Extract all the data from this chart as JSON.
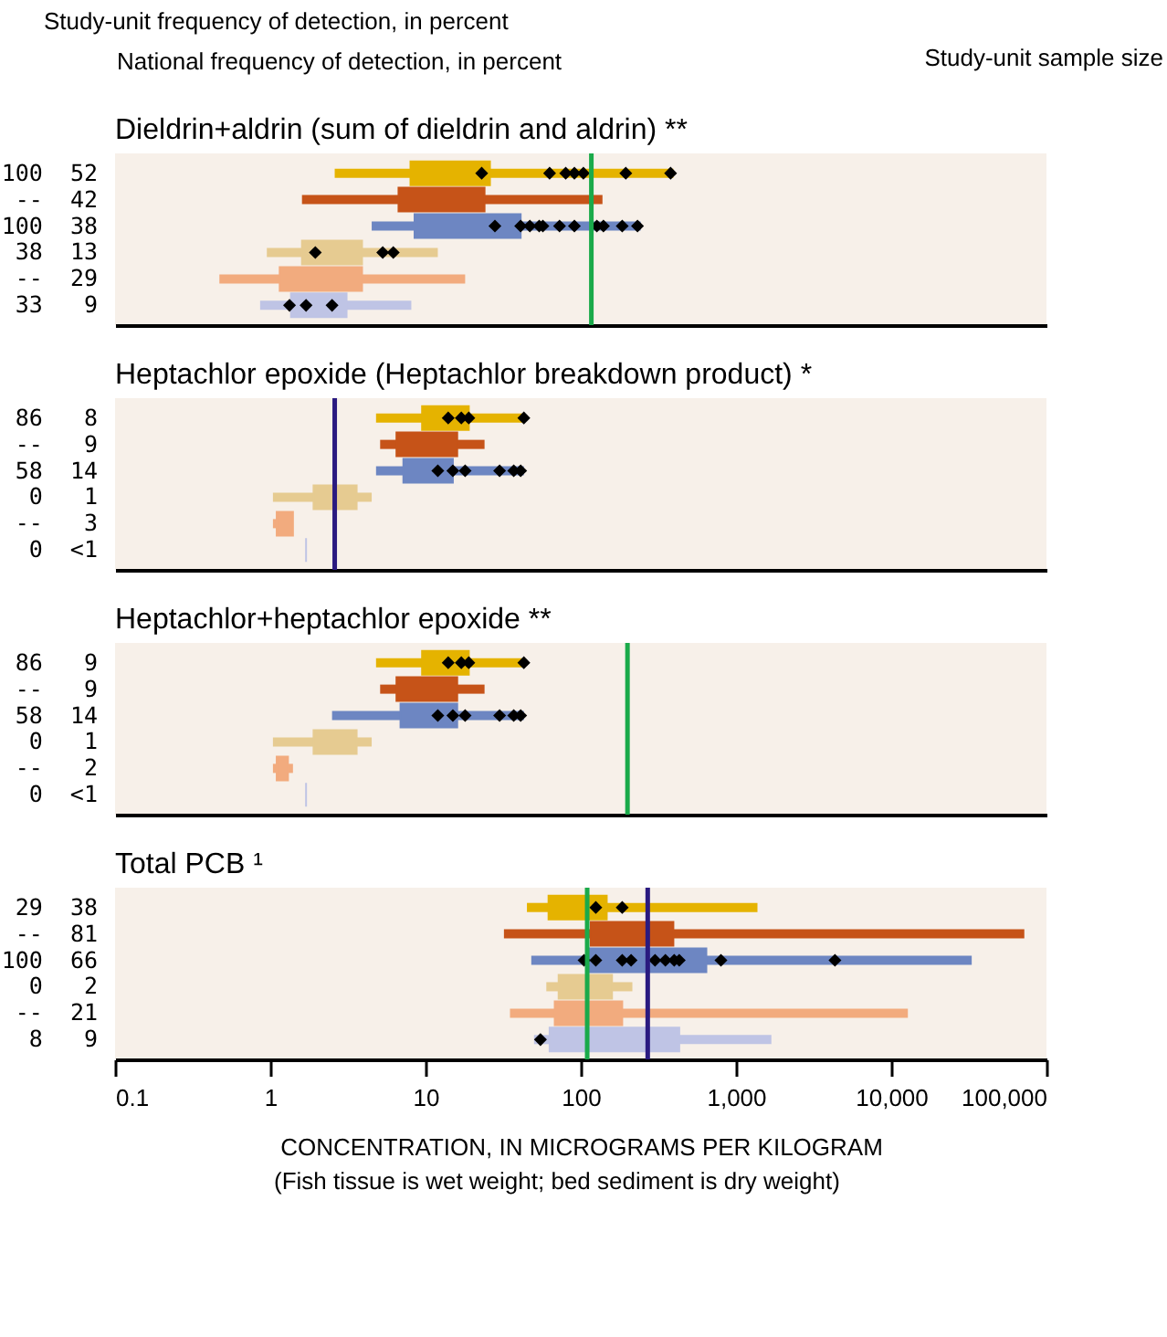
{
  "chart_data": [
    {
      "type": "box",
      "orientation": "horizontal",
      "title": "Dieldrin+aldrin (sum of dieldrin and aldrin)  **",
      "annotations": [
        "Study-unit frequency of detection, in percent",
        "National frequency of detection, in percent",
        "Study-unit sample size"
      ],
      "categories": [
        "100 52",
        "-- 42",
        "100 38",
        "38 13",
        "-- 29",
        "33 9"
      ],
      "colors": [
        "#e5b300",
        "#c65318",
        "#6d86c2",
        "#e6cb91",
        "#f2ab7e",
        "#bfc4e5"
      ],
      "boxes": [
        {
          "low": 2.6,
          "q1": 8,
          "q3": 26,
          "high": 395,
          "outliers": [
            23,
            63,
            80,
            91,
            104,
            195,
            379
          ]
        },
        {
          "low": 1.6,
          "q1": 6.7,
          "q3": 24,
          "high": 138
        },
        {
          "low": 4.5,
          "q1": 8.5,
          "q3": 41,
          "high": 243,
          "outliers": [
            28,
            41,
            47,
            54,
            57,
            73,
            91,
            127,
            140,
            185,
            232
          ]
        },
        {
          "low": 0.95,
          "q1": 1.6,
          "q3": 3.9,
          "high": 12,
          "outliers": [
            1.95,
            5.3,
            6.2
          ]
        },
        {
          "low": 0.47,
          "q1": 1.15,
          "q3": 3.9,
          "high": 18
        },
        {
          "low": 0.86,
          "q1": 1.36,
          "q3": 3.1,
          "high": 8.1,
          "outliers": [
            1.33,
            1.7,
            2.5
          ]
        }
      ],
      "marker": "diamond",
      "log": "x",
      "xlim": [
        0.1,
        100000
      ],
      "tick_labels": "y",
      "ref_lines": [
        {
          "axis": "x",
          "value": 117,
          "color": "#1aaa4a"
        }
      ]
    },
    {
      "type": "box",
      "orientation": "horizontal",
      "title": "Heptachlor epoxide (Heptachlor breakdown product) *",
      "categories": [
        "86 8",
        "-- 9",
        "58 14",
        "0 1",
        "-- 3",
        "0 <1"
      ],
      "colors": [
        "#e5b300",
        "#c65318",
        "#6d86c2",
        "#e6cb91",
        "#f2ab7e",
        "#bfc4e5"
      ],
      "boxes": [
        {
          "low": 4.8,
          "q1": 9.5,
          "q3": 19,
          "high": 43,
          "outliers": [
            14,
            17,
            19,
            43
          ]
        },
        {
          "low": 5.1,
          "q1": 6.5,
          "q3": 16,
          "high": 24
        },
        {
          "low": 4.8,
          "q1": 7.2,
          "q3": 15,
          "high": 43,
          "outliers": [
            12,
            15,
            18,
            30,
            37,
            41
          ]
        },
        {
          "low": 1.04,
          "q1": 1.9,
          "q3": 3.6,
          "high": 4.5
        },
        {
          "low": 1.04,
          "q1": 1.1,
          "q3": 1.4,
          "high": 1.4
        },
        {
          "low": 1.7,
          "q1": 1.7,
          "q3": 1.7,
          "high": 1.7
        }
      ],
      "marker": "diamond",
      "log": "x",
      "xlim": [
        0.1,
        100000
      ],
      "tick_labels": "y",
      "ref_lines": [
        {
          "axis": "x",
          "value": 2.6,
          "color": "#2a1a80"
        }
      ]
    },
    {
      "type": "box",
      "orientation": "horizontal",
      "title": "Heptachlor+heptachlor epoxide  **",
      "categories": [
        "86 9",
        "-- 9",
        "58 14",
        "0 1",
        "-- 2",
        "0 <1"
      ],
      "colors": [
        "#e5b300",
        "#c65318",
        "#6d86c2",
        "#e6cb91",
        "#f2ab7e",
        "#bfc4e5"
      ],
      "boxes": [
        {
          "low": 4.8,
          "q1": 9.5,
          "q3": 19,
          "high": 43,
          "outliers": [
            14,
            17,
            19,
            43
          ]
        },
        {
          "low": 5.1,
          "q1": 6.5,
          "q3": 16,
          "high": 24
        },
        {
          "low": 2.5,
          "q1": 6.9,
          "q3": 16,
          "high": 43,
          "outliers": [
            12,
            15,
            18,
            30,
            37,
            41
          ]
        },
        {
          "low": 1.04,
          "q1": 1.9,
          "q3": 3.6,
          "high": 4.5
        },
        {
          "low": 1.04,
          "q1": 1.1,
          "q3": 1.3,
          "high": 1.4
        },
        {
          "low": 1.7,
          "q1": 1.7,
          "q3": 1.7,
          "high": 1.7
        }
      ],
      "marker": "diamond",
      "log": "x",
      "xlim": [
        0.1,
        100000
      ],
      "tick_labels": "y",
      "ref_lines": [
        {
          "axis": "x",
          "value": 200,
          "color": "#1aaa4a"
        }
      ]
    },
    {
      "type": "box",
      "orientation": "horizontal",
      "title": "Total PCB ¹",
      "xlabel": "CONCENTRATION, IN MICROGRAMS PER KILOGRAM",
      "annotations": [
        "(Fish tissue is wet weight; bed sediment is dry weight)"
      ],
      "categories": [
        "29 38",
        "-- 81",
        "100 66",
        "0 2",
        "-- 21",
        "8 9"
      ],
      "colors": [
        "#e5b300",
        "#c65318",
        "#6d86c2",
        "#e6cb91",
        "#f2ab7e",
        "#bfc4e5"
      ],
      "boxes": [
        {
          "low": 45,
          "q1": 62,
          "q3": 147,
          "high": 1375,
          "outliers": [
            125,
            185
          ]
        },
        {
          "low": 32,
          "q1": 116,
          "q3": 395,
          "high": 72000
        },
        {
          "low": 48,
          "q1": 110,
          "q3": 644,
          "high": 33000,
          "outliers": [
            105,
            125,
            185,
            211,
            301,
            351,
            400,
            431,
            800,
            4340
          ]
        },
        {
          "low": 60,
          "q1": 72,
          "q3": 159,
          "high": 215
        },
        {
          "low": 35,
          "q1": 68,
          "q3": 185,
          "high": 12800
        },
        {
          "low": 50,
          "q1": 63,
          "q3": 431,
          "high": 1690,
          "outliers": [
            55
          ]
        }
      ],
      "marker": "diamond",
      "log": "x",
      "xlim": [
        0.1,
        100000
      ],
      "xticks": [
        0.1,
        1,
        10,
        100,
        {
          "value": 1000,
          "label": "1,000"
        },
        {
          "value": 10000,
          "label": "10,000"
        },
        {
          "value": 100000,
          "label": "100,000"
        }
      ],
      "ref_lines": [
        {
          "axis": "x",
          "value": 110,
          "color": "#1aaa4a"
        },
        {
          "axis": "x",
          "value": 270,
          "color": "#2a1a80"
        }
      ]
    }
  ]
}
